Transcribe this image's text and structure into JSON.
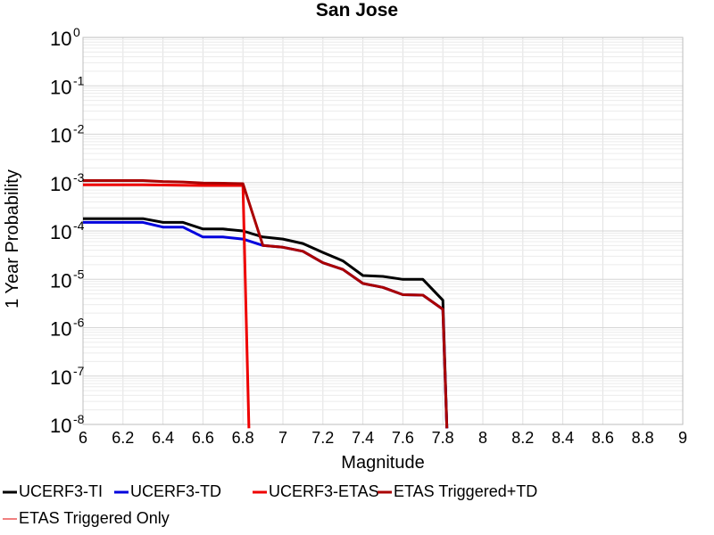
{
  "chart_data": {
    "type": "line",
    "title": "San Jose",
    "xlabel": "Magnitude",
    "ylabel": "1 Year Probability",
    "xlim": [
      6,
      9
    ],
    "ylim": [
      1e-08,
      1
    ],
    "yscale": "log",
    "grid": true,
    "legend_position": "bottom",
    "x_ticks": [
      "6",
      "6.2",
      "6.4",
      "6.6",
      "6.8",
      "7",
      "7.2",
      "7.4",
      "7.6",
      "7.8",
      "8",
      "8.2",
      "8.4",
      "8.6",
      "8.8",
      "9"
    ],
    "y_ticks": [
      {
        "base": "10",
        "exp": "0"
      },
      {
        "base": "10",
        "exp": "-1"
      },
      {
        "base": "10",
        "exp": "-2"
      },
      {
        "base": "10",
        "exp": "-3"
      },
      {
        "base": "10",
        "exp": "-4"
      },
      {
        "base": "10",
        "exp": "-5"
      },
      {
        "base": "10",
        "exp": "-6"
      },
      {
        "base": "10",
        "exp": "-7"
      },
      {
        "base": "10",
        "exp": "-8"
      }
    ],
    "series": [
      {
        "name": "UCERF3-TI",
        "color": "#000000",
        "x": [
          6.0,
          6.1,
          6.2,
          6.3,
          6.4,
          6.5,
          6.6,
          6.7,
          6.8,
          6.9,
          7.0,
          7.1,
          7.2,
          7.3,
          7.4,
          7.5,
          7.6,
          7.7,
          7.8,
          7.82
        ],
        "y": [
          0.00018,
          0.00018,
          0.00018,
          0.00018,
          0.00015,
          0.00015,
          0.00011,
          0.00011,
          0.0001,
          7.5e-05,
          6.8e-05,
          5.5e-05,
          3.6e-05,
          2.4e-05,
          1.2e-05,
          1.15e-05,
          1e-05,
          1e-05,
          3.7e-06,
          1e-09
        ]
      },
      {
        "name": "UCERF3-TD",
        "color": "#0000dd",
        "x": [
          6.0,
          6.1,
          6.2,
          6.3,
          6.4,
          6.5,
          6.6,
          6.7,
          6.8,
          6.9,
          7.0,
          7.1,
          7.2,
          7.3,
          7.4,
          7.5,
          7.6,
          7.7,
          7.8,
          7.82
        ],
        "y": [
          0.00015,
          0.00015,
          0.00015,
          0.00015,
          0.00012,
          0.00012,
          7.5e-05,
          7.5e-05,
          6.8e-05,
          5e-05,
          4.6e-05,
          3.8e-05,
          2.2e-05,
          1.6e-05,
          8.2e-06,
          6.8e-06,
          4.8e-06,
          4.7e-06,
          2.4e-06,
          1e-09
        ]
      },
      {
        "name": "UCERF3-ETAS",
        "color": "#ee0000",
        "x": [
          6.0,
          6.1,
          6.2,
          6.3,
          6.4,
          6.5,
          6.6,
          6.7,
          6.8,
          6.83
        ],
        "y": [
          0.0009,
          0.0009,
          0.0009,
          0.0009,
          0.00089,
          0.00088,
          0.00087,
          0.00087,
          0.00087,
          1e-09
        ]
      },
      {
        "name": "ETAS Triggered+TD",
        "color": "#aa0000",
        "x": [
          6.0,
          6.1,
          6.2,
          6.3,
          6.4,
          6.5,
          6.6,
          6.7,
          6.8,
          6.9,
          7.0,
          7.1,
          7.2,
          7.3,
          7.4,
          7.5,
          7.6,
          7.7,
          7.8,
          7.82
        ],
        "y": [
          0.0011,
          0.0011,
          0.0011,
          0.0011,
          0.00105,
          0.00103,
          0.00098,
          0.00097,
          0.00095,
          5e-05,
          4.6e-05,
          3.8e-05,
          2.2e-05,
          1.6e-05,
          8.2e-06,
          6.8e-06,
          4.8e-06,
          4.7e-06,
          2.4e-06,
          1e-09
        ]
      },
      {
        "name": "ETAS Triggered Only",
        "color": "#f08080",
        "x": [],
        "y": []
      }
    ]
  }
}
